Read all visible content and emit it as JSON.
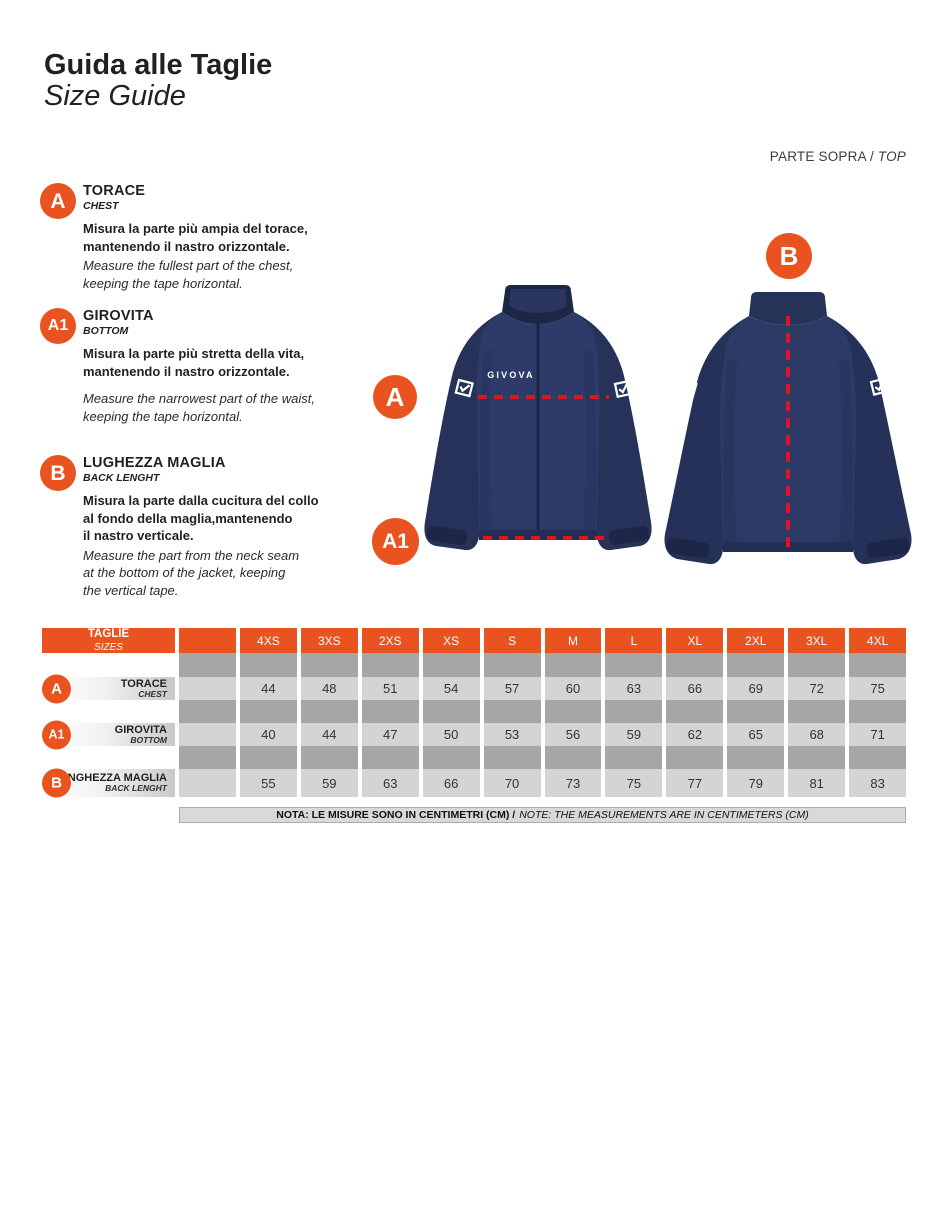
{
  "page": {
    "title_it": "Guida alle Taglie",
    "title_en": "Size Guide",
    "part_label": "PARTE SOPRA / ",
    "part_label_en": "TOP"
  },
  "sections": [
    {
      "badge": "A",
      "title": "TORACE",
      "subtitle": "CHEST",
      "desc_it": "Misura la parte più ampia del torace,\nmantenendo il nastro orizzontale.",
      "desc_en": "Measure the fullest part of the chest,\nkeeping the tape horizontal."
    },
    {
      "badge": "A1",
      "title": "GIROVITA",
      "subtitle": "BOTTOM",
      "desc_it": "Misura la parte più stretta della vita,\nmantenendo il nastro orizzontale.",
      "desc_en": "Measure the narrowest part of the waist,\nkeeping the tape horizontal."
    },
    {
      "badge": "B",
      "title": "LUGHEZZA MAGLIA",
      "subtitle": "BACK LENGHT",
      "desc_it": "Misura la parte dalla cucitura del collo\nal fondo della maglia,mantenendo\nil nastro verticale.",
      "desc_en": "Measure the part from the neck seam\nat the bottom of the jacket, keeping\nthe vertical tape."
    }
  ],
  "figure": {
    "front_logo": "GIVOVA",
    "front_chest_badge": "A",
    "front_hem_badge": "A1",
    "back_badge": "B"
  },
  "size_table": {
    "header": {
      "title": "TAGLIE",
      "subtitle": "SIZES"
    },
    "sizes": [
      "4XS",
      "3XS",
      "2XS",
      "XS",
      "S",
      "M",
      "L",
      "XL",
      "2XL",
      "3XL",
      "4XL"
    ],
    "rows": [
      {
        "badge": "A",
        "label": "TORACE",
        "sublabel": "CHEST",
        "values": [
          44,
          48,
          51,
          54,
          57,
          60,
          63,
          66,
          69,
          72,
          75
        ]
      },
      {
        "badge": "A1",
        "label": "GIROVITA",
        "sublabel": "BOTTOM",
        "values": [
          40,
          44,
          47,
          50,
          53,
          56,
          59,
          62,
          65,
          68,
          71
        ]
      },
      {
        "badge": "B",
        "label": "LUNGHEZZA MAGLIA",
        "sublabel": "BACK LENGHT",
        "values": [
          55,
          59,
          63,
          66,
          70,
          73,
          75,
          77,
          79,
          81,
          83
        ]
      }
    ],
    "note_it": "NOTA: LE MISURE SONO IN CENTIMETRI (CM) /",
    "note_en": "NOTE: THE MEASUREMENTS ARE IN CENTIMETERS (CM)"
  },
  "colors": {
    "orange": "#E8531F",
    "navy": "#2E3B68",
    "dash_red": "#DC1425",
    "gray_dark": "#A6A6A6",
    "gray_light": "#D4D4D4"
  }
}
